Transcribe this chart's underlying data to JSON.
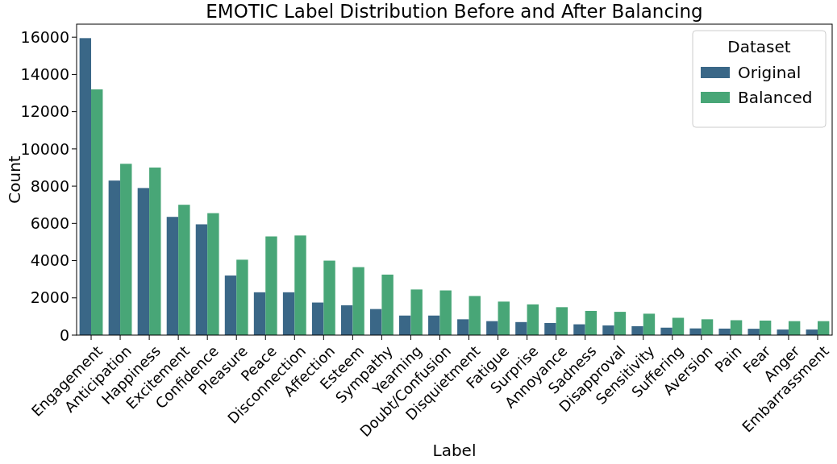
{
  "chart_data": {
    "type": "bar",
    "title": "EMOTIC Label Distribution Before and After Balancing",
    "xlabel": "Label",
    "ylabel": "Count",
    "legend_title": "Dataset",
    "legend": "top right",
    "categories": [
      "Engagement",
      "Anticipation",
      "Happiness",
      "Excitement",
      "Confidence",
      "Pleasure",
      "Peace",
      "Disconnection",
      "Affection",
      "Esteem",
      "Sympathy",
      "Yearning",
      "Doubt/Confusion",
      "Disquietment",
      "Fatigue",
      "Surprise",
      "Annoyance",
      "Sadness",
      "Disapproval",
      "Sensitivity",
      "Suffering",
      "Aversion",
      "Pain",
      "Fear",
      "Anger",
      "Embarrassment"
    ],
    "series": [
      {
        "name": "Original",
        "color": "#3a6787",
        "values": [
          15950,
          8300,
          7900,
          6350,
          5950,
          3200,
          2300,
          2300,
          1750,
          1600,
          1400,
          1050,
          1050,
          850,
          750,
          700,
          650,
          580,
          520,
          480,
          400,
          360,
          350,
          340,
          300,
          300
        ]
      },
      {
        "name": "Balanced",
        "color": "#48a677",
        "values": [
          13200,
          9200,
          9000,
          7000,
          6550,
          4050,
          5300,
          5350,
          4000,
          3650,
          3250,
          2450,
          2400,
          2100,
          1800,
          1650,
          1500,
          1300,
          1250,
          1150,
          930,
          850,
          800,
          780,
          750,
          750
        ]
      }
    ],
    "ylim": [
      0,
      16700
    ],
    "yticks": [
      0,
      2000,
      4000,
      6000,
      8000,
      10000,
      12000,
      14000,
      16000
    ]
  }
}
